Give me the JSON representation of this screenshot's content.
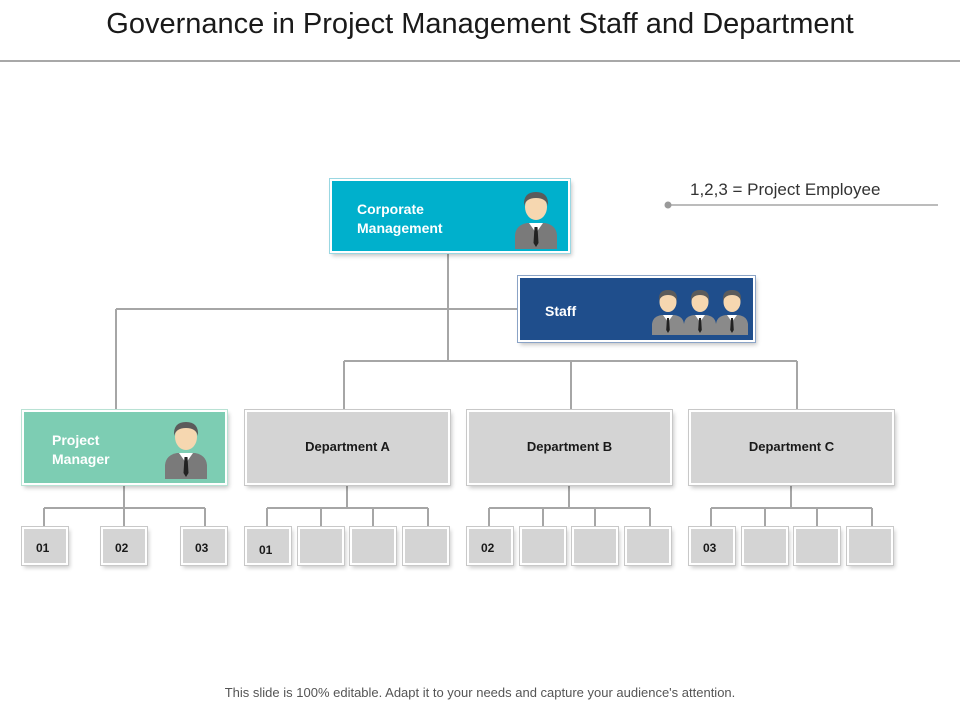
{
  "title": "Governance in Project Management Staff and Department",
  "legend": {
    "text": "1,2,3 = Project Employee"
  },
  "corporate": {
    "line1": "Corporate",
    "line2": "Management",
    "icon": "person-icon"
  },
  "staff": {
    "label": "Staff",
    "icon": "person-group-icon"
  },
  "project_manager": {
    "line1": "Project",
    "line2": "Manager",
    "icon": "person-icon"
  },
  "departments": [
    {
      "label": "Department A",
      "employee": "01"
    },
    {
      "label": "Department B",
      "employee": "02"
    },
    {
      "label": "Department C",
      "employee": "03"
    }
  ],
  "pm_employees": [
    "01",
    "02",
    "03"
  ],
  "footer": "This slide is 100% editable. Adapt it to your needs and capture your audience's attention.",
  "colors": {
    "corporate": "#00b0cc",
    "staff": "#1f4e8c",
    "project_manager": "#7dcdb3",
    "department": "#d4d4d4",
    "connector": "#a6a6a6"
  }
}
